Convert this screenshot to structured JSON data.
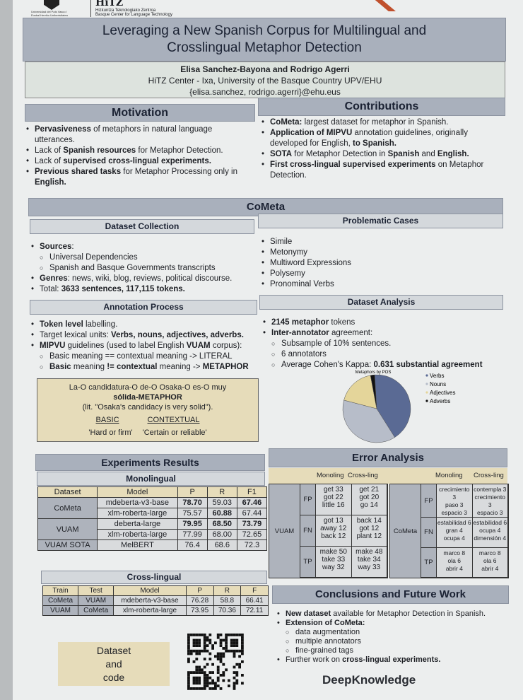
{
  "logos": {
    "upv": "Universidad del País Vasco / Euskal Herriko Unibertsitatea",
    "hitz": "HiTZ",
    "hitz_sub1": "Hizkuntza Teknologiako Zentroa",
    "hitz_sub2": "Basque Center for Language Technology"
  },
  "title": "Leveraging a New Spanish Corpus for Multilingual and Crosslingual Metaphor Detection",
  "authors": "Elisa Sanchez-Bayona and Rodrigo Agerri",
  "affiliation": "HiTZ Center - Ixa, University of the Basque Country UPV/EHU",
  "emails": "{elisa.sanchez, rodrigo.agerri}@ehu.eus",
  "motivation": {
    "title": "Motivation",
    "items": [
      [
        {
          "t": "Pervasiveness",
          "b": 1
        },
        {
          "t": " of metaphors in natural language utterances."
        }
      ],
      [
        {
          "t": "Lack of "
        },
        {
          "t": "Spanish resources",
          "b": 1
        },
        {
          "t": " for Metaphor Detection."
        }
      ],
      [
        {
          "t": "Lack of "
        },
        {
          "t": "supervised cross-lingual experiments.",
          "b": 1
        }
      ],
      [
        {
          "t": "Previous shared tasks",
          "b": 1
        },
        {
          "t": " for Metaphor Processing only in "
        },
        {
          "t": "English.",
          "b": 1
        }
      ]
    ]
  },
  "contributions": {
    "title": "Contributions",
    "items": [
      [
        {
          "t": "CoMeta:",
          "b": 1
        },
        {
          "t": " largest dataset for metaphor in Spanish."
        }
      ],
      [
        {
          "t": "Application of MIPVU",
          "b": 1
        },
        {
          "t": " annotation guidelines, originally developed for English, "
        },
        {
          "t": "to Spanish.",
          "b": 1
        }
      ],
      [
        {
          "t": "SOTA",
          "b": 1
        },
        {
          "t": " for Metaphor Detection in "
        },
        {
          "t": "Spanish",
          "b": 1
        },
        {
          "t": " and "
        },
        {
          "t": "English.",
          "b": 1
        }
      ],
      [
        {
          "t": "First cross-lingual supervised experiments",
          "b": 1
        },
        {
          "t": " on Metaphor Detection."
        }
      ]
    ]
  },
  "cometa": {
    "title": "CoMeta"
  },
  "collection": {
    "title": "Dataset Collection",
    "items": [
      {
        "c": 0,
        "s": [
          {
            "t": "Sources",
            "b": 1
          },
          {
            "t": ":"
          }
        ]
      },
      {
        "c": 1,
        "s": [
          {
            "t": "Universal Dependencies"
          }
        ]
      },
      {
        "c": 1,
        "s": [
          {
            "t": "Spanish and Basque Governments transcripts"
          }
        ]
      },
      {
        "c": 0,
        "s": [
          {
            "t": "Genres",
            "b": 1
          },
          {
            "t": ": news, wiki, blog, reviews, political discourse."
          }
        ]
      },
      {
        "c": 0,
        "s": [
          {
            "t": "Total: "
          },
          {
            "t": "3633 sentences, 117,115 tokens.",
            "b": 1
          }
        ]
      }
    ]
  },
  "problematic": {
    "title": "Problematic Cases",
    "items": [
      "Simile",
      "Metonymy",
      "Multiword Expressions",
      "Polysemy",
      "Pronominal Verbs"
    ]
  },
  "annotation": {
    "title": "Annotation Process",
    "items": [
      {
        "c": 0,
        "s": [
          {
            "t": "Token level",
            "b": 1
          },
          {
            "t": " labelling."
          }
        ]
      },
      {
        "c": 0,
        "s": [
          {
            "t": "Target lexical units: "
          },
          {
            "t": "Verbs, nouns, adjectives, adverbs.",
            "b": 1
          }
        ]
      },
      {
        "c": 0,
        "s": [
          {
            "t": "MIPVU",
            "b": 1
          },
          {
            "t": " guidelines (used to label English "
          },
          {
            "t": "VUAM",
            "b": 1
          },
          {
            "t": " corpus):"
          }
        ]
      },
      {
        "c": 1,
        "s": [
          {
            "t": "Basic meaning == contextual meaning -> LITERAL"
          }
        ]
      },
      {
        "c": 1,
        "s": [
          {
            "t": "Basic",
            "b": 1
          },
          {
            "t": " meaning "
          },
          {
            "t": "!= contextual",
            "b": 1
          },
          {
            "t": " meaning -> "
          },
          {
            "t": "METAPHOR",
            "b": 1
          }
        ]
      }
    ]
  },
  "example": {
    "sentence": "La-O candidatura-O de-O Osaka-O es-O muy",
    "metaphor": "sólida-METAPHOR",
    "translation": "(lit. \"Osaka's candidacy is very solid\").",
    "basic": "BASIC",
    "contextual": "CONTEXTUAL",
    "basic_gloss": "'Hard or firm'",
    "contextual_gloss": "'Certain or reliable'"
  },
  "analysis": {
    "title": "Dataset Analysis",
    "items": [
      {
        "c": 0,
        "s": [
          {
            "t": "2145 metaphor",
            "b": 1
          },
          {
            "t": " tokens"
          }
        ]
      },
      {
        "c": 0,
        "s": [
          {
            "t": "Inter-annotator",
            "b": 1
          },
          {
            "t": " agreement:"
          }
        ]
      },
      {
        "c": 1,
        "s": [
          {
            "t": "Subsample of 10% sentences."
          }
        ]
      },
      {
        "c": 1,
        "s": [
          {
            "t": "6 annotators"
          }
        ]
      },
      {
        "c": 1,
        "s": [
          {
            "t": "Average Cohen's Kappa: "
          },
          {
            "t": "0.631 substantial agreement",
            "b": 1
          }
        ]
      }
    ]
  },
  "chart_data": {
    "type": "pie",
    "title": "Metaphors by POS",
    "categories": [
      "Verbs",
      "Nouns",
      "Adjectives",
      "Adverbs"
    ],
    "values": [
      42,
      38,
      18,
      2
    ],
    "colors": [
      "#5a6a94",
      "#b7bdc9",
      "#e4d59a",
      "#111111"
    ],
    "legend": "right"
  },
  "experiments": {
    "title": "Experiments Results",
    "mono_title": "Monolingual",
    "mono_headers": [
      "Dataset",
      "Model",
      "P",
      "R",
      "F1"
    ],
    "mono_rows": [
      {
        "ds": "CoMeta",
        "model": "mdeberta-v3-base",
        "p": "78.70",
        "r": "59.03",
        "f": "67.46",
        "pb": 1,
        "rb": 0,
        "fb": 1
      },
      {
        "ds": "",
        "model": "xlm-roberta-large",
        "p": "75.57",
        "r": "60.88",
        "f": "67.44",
        "pb": 0,
        "rb": 1,
        "fb": 0
      },
      {
        "ds": "VUAM",
        "model": "deberta-large",
        "p": "79.95",
        "r": "68.50",
        "f": "73.79",
        "pb": 1,
        "rb": 1,
        "fb": 1
      },
      {
        "ds": "",
        "model": "xlm-roberta-large",
        "p": "77.99",
        "r": "68.00",
        "f": "72.65",
        "pb": 0,
        "rb": 0,
        "fb": 0
      },
      {
        "ds": "VUAM SOTA",
        "model": "MelBERT",
        "p": "76.4",
        "r": "68.6",
        "f": "72.3",
        "pb": 0,
        "rb": 0,
        "fb": 0
      }
    ],
    "cross_title": "Cross-lingual",
    "cross_headers": [
      "Train",
      "Test",
      "Model",
      "P",
      "R",
      "F"
    ],
    "cross_rows": [
      [
        "CoMeta",
        "VUAM",
        "mdeberta-v3-base",
        "76.28",
        "58.8",
        "66.41"
      ],
      [
        "VUAM",
        "CoMeta",
        "xlm-roberta-large",
        "73.95",
        "70.36",
        "72.11"
      ]
    ]
  },
  "error": {
    "title": "Error Analysis",
    "col_mono": "Monoling",
    "col_cross": "Cross-ling",
    "groups": [
      {
        "name": "VUAM",
        "rows": [
          {
            "type": "FP",
            "mono": "get 33\ngot 22\nlittle 16",
            "cross": "get 21\ngot 20\ngo 14"
          },
          {
            "type": "FN",
            "mono": "got 13\naway 12\nback 12",
            "cross": "back 14\ngot 12\nplant 12"
          },
          {
            "type": "TP",
            "mono": "make 50\ntake 33\nway 32",
            "cross": "make 48\ntake 34\nway 33"
          }
        ]
      },
      {
        "name": "CoMeta",
        "rows": [
          {
            "type": "FP",
            "mono": "crecimiento 3\npaso 3\nespacio 3",
            "cross": "contempla 3\ncrecimiento 3\nespacio 3"
          },
          {
            "type": "FN",
            "mono": "estabilidad 6\ngran 4\nocupa 4",
            "cross": "estabilidad 6\nocupa 4\ndimensión 4"
          },
          {
            "type": "TP",
            "mono": "marco 8\nola 6\nabrir 4",
            "cross": "marco 8\nola 6\nabrir 4"
          }
        ]
      }
    ]
  },
  "conclusions": {
    "title": "Conclusions and Future Work",
    "items": [
      {
        "c": 0,
        "s": [
          {
            "t": "New dataset",
            "b": 1
          },
          {
            "t": " available for Metaphor Detection in Spanish."
          }
        ]
      },
      {
        "c": 0,
        "s": [
          {
            "t": "Extension of CoMeta:",
            "b": 1
          }
        ]
      },
      {
        "c": 1,
        "s": [
          {
            "t": "data augmentation"
          }
        ]
      },
      {
        "c": 1,
        "s": [
          {
            "t": "multiple annotators"
          }
        ]
      },
      {
        "c": 1,
        "s": [
          {
            "t": "fine-grained tags"
          }
        ]
      },
      {
        "c": 0,
        "s": [
          {
            "t": "Further work on "
          },
          {
            "t": "cross-lingual experiments.",
            "b": 1
          }
        ]
      }
    ]
  },
  "dataset_code": "Dataset\nand\ncode",
  "deepknowledge": "DeepKnowledge"
}
